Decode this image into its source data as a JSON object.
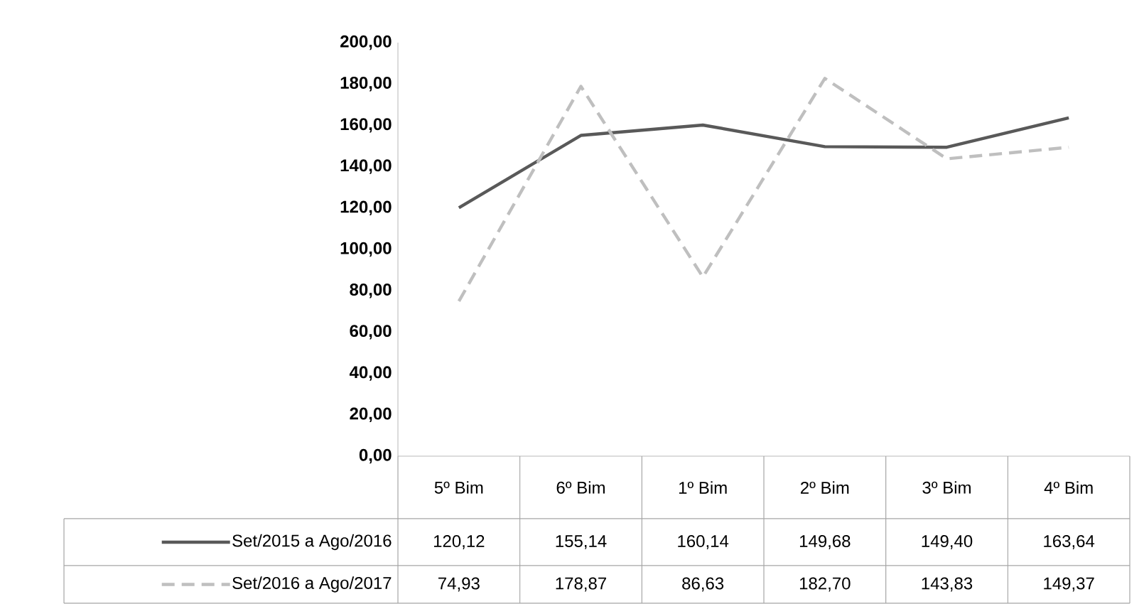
{
  "chart_data": {
    "type": "line",
    "categories": [
      "5º Bim",
      "6º Bim",
      "1º Bim",
      "2º Bim",
      "3º Bim",
      "4º Bim"
    ],
    "series": [
      {
        "name": "Set/2015 a Ago/2016",
        "color": "#595959",
        "line_style": "solid",
        "values": [
          120.12,
          155.14,
          160.14,
          149.68,
          149.4,
          163.64
        ],
        "value_labels": [
          "120,12",
          "155,14",
          "160,14",
          "149,68",
          "149,40",
          "163,64"
        ]
      },
      {
        "name": "Set/2016 a Ago/2017",
        "color": "#bfbfbf",
        "line_style": "dashed",
        "values": [
          74.93,
          178.87,
          86.63,
          182.7,
          143.83,
          149.37
        ],
        "value_labels": [
          "74,93",
          "178,87",
          "86,63",
          "182,70",
          "143,83",
          "149,37"
        ]
      }
    ],
    "ylim": [
      0,
      200
    ],
    "yticks": [
      {
        "value": 0,
        "label": "0,00"
      },
      {
        "value": 20,
        "label": "20,00"
      },
      {
        "value": 40,
        "label": "40,00"
      },
      {
        "value": 60,
        "label": "60,00"
      },
      {
        "value": 80,
        "label": "80,00"
      },
      {
        "value": 100,
        "label": "100,00"
      },
      {
        "value": 120,
        "label": "120,00"
      },
      {
        "value": 140,
        "label": "140,00"
      },
      {
        "value": 160,
        "label": "160,00"
      },
      {
        "value": 180,
        "label": "180,00"
      },
      {
        "value": 200,
        "label": "200,00"
      }
    ],
    "grid": false,
    "legend": "bottom"
  }
}
